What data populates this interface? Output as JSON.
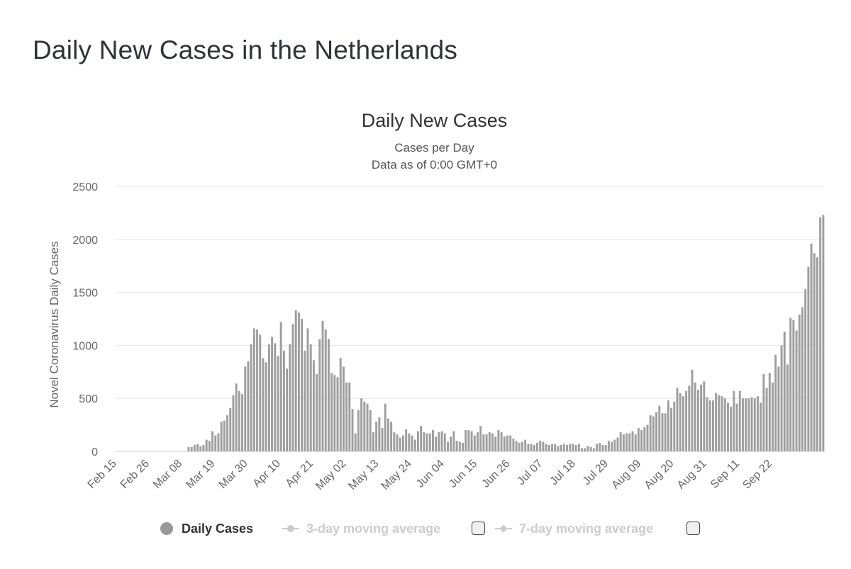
{
  "page": {
    "title": "Daily New Cases in the Netherlands"
  },
  "chart": {
    "title": "Daily New Cases",
    "subtitle_line1": "Cases per Day",
    "subtitle_line2": "Data as of 0:00 GMT+0"
  },
  "legend": {
    "items": [
      {
        "label": "Daily Cases",
        "active": true
      },
      {
        "label": "3-day moving average",
        "active": false
      },
      {
        "label": "7-day moving average",
        "active": false
      }
    ]
  },
  "colors": {
    "bar": "#9e9e9e",
    "grid": "#e6e6e6",
    "inactive_legend": "#cccccc"
  },
  "chart_data": {
    "type": "bar",
    "ylabel": "Novel Coronavirus Daily Cases",
    "xlabel": "",
    "ylim": [
      0,
      2500
    ],
    "yticks": [
      0,
      500,
      1000,
      1500,
      2000,
      2500
    ],
    "grid": true,
    "legend_position": "bottom",
    "xtick_labels": [
      "Feb 15",
      "Feb 26",
      "Mar 08",
      "Mar 19",
      "Mar 30",
      "Apr 10",
      "Apr 21",
      "May 02",
      "May 13",
      "May 24",
      "Jun 04",
      "Jun 15",
      "Jun 26",
      "Jul 07",
      "Jul 18",
      "Jul 29",
      "Aug 09",
      "Aug 20",
      "Aug 31",
      "Sep 11",
      "Sep 22"
    ],
    "x_start": "Feb 15",
    "x_end": "Sep 22",
    "series": [
      {
        "name": "Daily Cases",
        "values": [
          0,
          0,
          0,
          0,
          0,
          0,
          0,
          0,
          0,
          0,
          0,
          0,
          0,
          0,
          0,
          0,
          0,
          0,
          0,
          0,
          0,
          0,
          0,
          0,
          40,
          40,
          60,
          70,
          50,
          60,
          110,
          100,
          190,
          150,
          170,
          280,
          290,
          340,
          410,
          530,
          640,
          570,
          540,
          800,
          850,
          1010,
          1160,
          1150,
          1100,
          880,
          840,
          1010,
          1080,
          1020,
          900,
          1220,
          950,
          780,
          1010,
          1200,
          1330,
          1310,
          1250,
          950,
          1160,
          1010,
          860,
          730,
          1060,
          1230,
          1150,
          1060,
          740,
          720,
          700,
          880,
          800,
          650,
          650,
          400,
          170,
          390,
          500,
          470,
          450,
          390,
          180,
          280,
          320,
          220,
          450,
          310,
          280,
          180,
          160,
          130,
          150,
          210,
          170,
          150,
          110,
          190,
          240,
          180,
          170,
          170,
          200,
          140,
          180,
          190,
          170,
          90,
          140,
          190,
          100,
          90,
          80,
          200,
          200,
          190,
          150,
          180,
          240,
          160,
          160,
          180,
          170,
          140,
          200,
          180,
          140,
          150,
          150,
          120,
          100,
          80,
          90,
          110,
          70,
          70,
          60,
          80,
          100,
          90,
          70,
          60,
          70,
          70,
          50,
          60,
          70,
          60,
          70,
          70,
          60,
          70,
          30,
          30,
          50,
          40,
          30,
          70,
          80,
          60,
          60,
          100,
          90,
          110,
          130,
          180,
          160,
          170,
          170,
          190,
          160,
          220,
          200,
          230,
          250,
          340,
          330,
          370,
          430,
          360,
          360,
          480,
          410,
          470,
          600,
          550,
          520,
          570,
          620,
          770,
          650,
          580,
          630,
          660,
          510,
          480,
          480,
          550,
          530,
          520,
          500,
          460,
          420,
          570,
          450,
          570,
          500,
          500,
          500,
          510,
          500,
          520,
          460,
          730,
          600,
          740,
          650,
          910,
          800,
          1000,
          1130,
          820,
          1260,
          1240,
          1140,
          1290,
          1360,
          1530,
          1740,
          1960,
          1870,
          1830,
          2210,
          2230
        ]
      }
    ]
  }
}
